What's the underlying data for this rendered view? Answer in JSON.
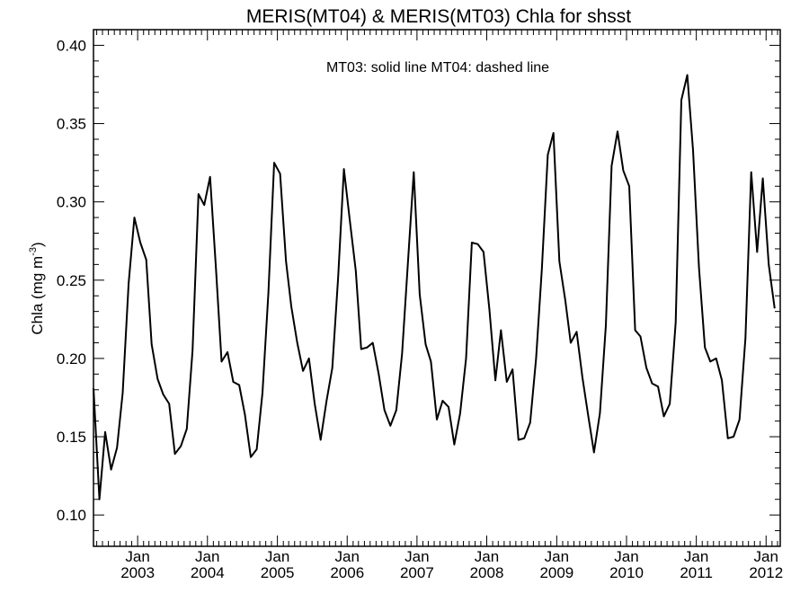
{
  "chart_data": {
    "type": "line",
    "title": "MERIS(MT04) & MERIS(MT03)  Chla for shsst",
    "annotation": "MT03: solid line   MT04: dashed line",
    "ylabel_main": "Chla (mg m",
    "ylabel_sup": "-3",
    "ylabel_close": ")",
    "xlabel": "",
    "ylim": [
      0.08,
      0.41
    ],
    "yticks": [
      {
        "value": 0.1,
        "label": "0.10"
      },
      {
        "value": 0.15,
        "label": "0.15"
      },
      {
        "value": 0.2,
        "label": "0.20"
      },
      {
        "value": 0.25,
        "label": "0.25"
      },
      {
        "value": 0.3,
        "label": "0.30"
      },
      {
        "value": 0.35,
        "label": "0.35"
      },
      {
        "value": 0.4,
        "label": "0.40"
      }
    ],
    "xlim": [
      "2002-05-15",
      "2012-03-15"
    ],
    "xticks": [
      {
        "date": "2003-01-01",
        "month": "Jan",
        "year": "2003"
      },
      {
        "date": "2004-01-01",
        "month": "Jan",
        "year": "2004"
      },
      {
        "date": "2005-01-01",
        "month": "Jan",
        "year": "2005"
      },
      {
        "date": "2006-01-01",
        "month": "Jan",
        "year": "2006"
      },
      {
        "date": "2007-01-01",
        "month": "Jan",
        "year": "2007"
      },
      {
        "date": "2008-01-01",
        "month": "Jan",
        "year": "2008"
      },
      {
        "date": "2009-01-01",
        "month": "Jan",
        "year": "2009"
      },
      {
        "date": "2010-01-01",
        "month": "Jan",
        "year": "2010"
      },
      {
        "date": "2011-01-01",
        "month": "Jan",
        "year": "2011"
      },
      {
        "date": "2012-01-01",
        "month": "Jan",
        "year": "2012"
      }
    ],
    "series": [
      {
        "name": "MT03",
        "style": "solid",
        "color": "#000000",
        "points": [
          [
            "2002-05-15",
            0.181
          ],
          [
            "2002-06-15",
            0.11
          ],
          [
            "2002-07-15",
            0.153
          ],
          [
            "2002-08-15",
            0.129
          ],
          [
            "2002-09-15",
            0.143
          ],
          [
            "2002-10-15",
            0.178
          ],
          [
            "2002-11-15",
            0.248
          ],
          [
            "2002-12-15",
            0.29
          ],
          [
            "2003-01-15",
            0.274
          ],
          [
            "2003-02-15",
            0.263
          ],
          [
            "2003-03-15",
            0.209
          ],
          [
            "2003-04-15",
            0.187
          ],
          [
            "2003-05-15",
            0.177
          ],
          [
            "2003-06-15",
            0.171
          ],
          [
            "2003-07-15",
            0.139
          ],
          [
            "2003-08-15",
            0.144
          ],
          [
            "2003-09-15",
            0.155
          ],
          [
            "2003-10-15",
            0.205
          ],
          [
            "2003-11-15",
            0.305
          ],
          [
            "2003-12-15",
            0.298
          ],
          [
            "2004-01-15",
            0.316
          ],
          [
            "2004-02-15",
            0.257
          ],
          [
            "2004-03-15",
            0.198
          ],
          [
            "2004-04-15",
            0.204
          ],
          [
            "2004-05-15",
            0.185
          ],
          [
            "2004-06-15",
            0.183
          ],
          [
            "2004-07-15",
            0.164
          ],
          [
            "2004-08-15",
            0.137
          ],
          [
            "2004-09-15",
            0.142
          ],
          [
            "2004-10-15",
            0.178
          ],
          [
            "2004-11-15",
            0.242
          ],
          [
            "2004-12-15",
            0.325
          ],
          [
            "2005-01-15",
            0.318
          ],
          [
            "2005-02-15",
            0.262
          ],
          [
            "2005-03-15",
            0.233
          ],
          [
            "2005-04-15",
            0.21
          ],
          [
            "2005-05-15",
            0.192
          ],
          [
            "2005-06-15",
            0.2
          ],
          [
            "2005-07-15",
            0.171
          ],
          [
            "2005-08-15",
            0.148
          ],
          [
            "2005-09-15",
            0.173
          ],
          [
            "2005-10-15",
            0.194
          ],
          [
            "2005-11-15",
            0.252
          ],
          [
            "2005-12-15",
            0.321
          ],
          [
            "2006-01-15",
            0.288
          ],
          [
            "2006-02-15",
            0.256
          ],
          [
            "2006-03-15",
            0.206
          ],
          [
            "2006-04-15",
            0.207
          ],
          [
            "2006-05-15",
            0.21
          ],
          [
            "2006-06-15",
            0.19
          ],
          [
            "2006-07-15",
            0.167
          ],
          [
            "2006-08-15",
            0.157
          ],
          [
            "2006-09-15",
            0.167
          ],
          [
            "2006-10-15",
            0.203
          ],
          [
            "2006-11-15",
            0.262
          ],
          [
            "2006-12-15",
            0.319
          ],
          [
            "2007-01-15",
            0.241
          ],
          [
            "2007-02-15",
            0.209
          ],
          [
            "2007-03-15",
            0.198
          ],
          [
            "2007-04-15",
            0.161
          ],
          [
            "2007-05-15",
            0.173
          ],
          [
            "2007-06-15",
            0.169
          ],
          [
            "2007-07-15",
            0.145
          ],
          [
            "2007-08-15",
            0.165
          ],
          [
            "2007-09-15",
            0.2
          ],
          [
            "2007-10-15",
            0.274
          ],
          [
            "2007-11-15",
            0.273
          ],
          [
            "2007-12-15",
            0.268
          ],
          [
            "2008-01-15",
            0.231
          ],
          [
            "2008-02-15",
            0.186
          ],
          [
            "2008-03-15",
            0.218
          ],
          [
            "2008-04-15",
            0.185
          ],
          [
            "2008-05-15",
            0.193
          ],
          [
            "2008-06-15",
            0.148
          ],
          [
            "2008-07-15",
            0.149
          ],
          [
            "2008-08-15",
            0.159
          ],
          [
            "2008-09-15",
            0.2
          ],
          [
            "2008-10-15",
            0.257
          ],
          [
            "2008-11-15",
            0.33
          ],
          [
            "2008-12-15",
            0.344
          ],
          [
            "2009-01-15",
            0.262
          ],
          [
            "2009-02-15",
            0.237
          ],
          [
            "2009-03-15",
            0.21
          ],
          [
            "2009-04-15",
            0.217
          ],
          [
            "2009-05-15",
            0.188
          ],
          [
            "2009-06-15",
            0.163
          ],
          [
            "2009-07-15",
            0.14
          ],
          [
            "2009-08-15",
            0.165
          ],
          [
            "2009-09-15",
            0.221
          ],
          [
            "2009-10-15",
            0.323
          ],
          [
            "2009-11-15",
            0.345
          ],
          [
            "2009-12-15",
            0.32
          ],
          [
            "2010-01-15",
            0.31
          ],
          [
            "2010-02-15",
            0.218
          ],
          [
            "2010-03-15",
            0.214
          ],
          [
            "2010-04-15",
            0.194
          ],
          [
            "2010-05-15",
            0.184
          ],
          [
            "2010-06-15",
            0.182
          ],
          [
            "2010-07-15",
            0.163
          ],
          [
            "2010-08-15",
            0.171
          ],
          [
            "2010-09-15",
            0.223
          ],
          [
            "2010-10-15",
            0.365
          ],
          [
            "2010-11-15",
            0.381
          ],
          [
            "2010-12-15",
            0.333
          ],
          [
            "2011-01-15",
            0.258
          ],
          [
            "2011-02-15",
            0.207
          ],
          [
            "2011-03-15",
            0.198
          ],
          [
            "2011-04-15",
            0.2
          ],
          [
            "2011-05-15",
            0.186
          ],
          [
            "2011-06-15",
            0.149
          ],
          [
            "2011-07-15",
            0.15
          ],
          [
            "2011-08-15",
            0.161
          ],
          [
            "2011-09-15",
            0.213
          ],
          [
            "2011-10-15",
            0.319
          ],
          [
            "2011-11-15",
            0.268
          ],
          [
            "2011-12-15",
            0.315
          ],
          [
            "2012-01-15",
            0.26
          ],
          [
            "2012-02-15",
            0.232
          ]
        ]
      }
    ]
  }
}
